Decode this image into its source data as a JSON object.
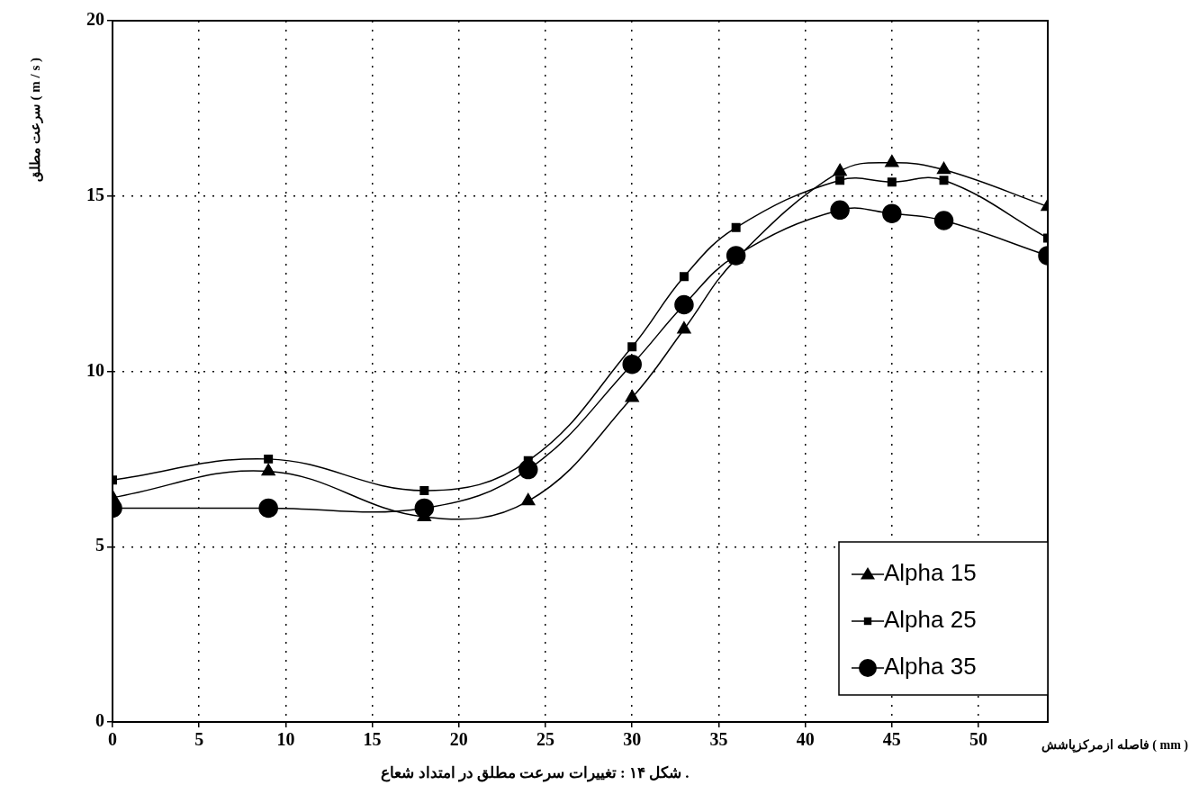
{
  "chart_data": {
    "type": "line",
    "xlabel": "فاصله ازمرکزپاشش ( mm )",
    "ylabel": "سرعت مطلق ( m / s )",
    "annotations": [
      "شکل ۱۴ : تغییرات سرعت مطلق در امتداد شعاع ."
    ],
    "x": [
      0,
      9,
      18,
      24,
      30,
      33,
      36,
      42,
      45,
      48,
      54
    ],
    "series": [
      {
        "name": "Alpha 15",
        "color": "#000000",
        "marker": "triangle",
        "values": [
          6.4,
          7.15,
          5.85,
          6.3,
          9.25,
          11.2,
          13.2,
          15.7,
          15.95,
          15.75,
          14.7
        ]
      },
      {
        "name": "Alpha 25",
        "color": "#000000",
        "marker": "square",
        "values": [
          6.9,
          7.5,
          6.6,
          7.45,
          10.7,
          12.7,
          14.1,
          15.45,
          15.4,
          15.45,
          13.8
        ]
      },
      {
        "name": "Alpha 35",
        "color": "#000000",
        "marker": "circle",
        "values": [
          6.1,
          6.1,
          6.1,
          7.2,
          10.2,
          11.9,
          13.3,
          14.6,
          14.5,
          14.3,
          13.3
        ]
      }
    ],
    "xlim": [
      0,
      54
    ],
    "xticks": [
      0,
      5,
      10,
      15,
      20,
      25,
      30,
      35,
      40,
      45,
      50
    ],
    "ylim": [
      0,
      20
    ],
    "yticks": [
      0,
      5,
      10,
      15,
      20
    ],
    "grid": true,
    "legend": "bottom right",
    "line_style": "solid"
  }
}
